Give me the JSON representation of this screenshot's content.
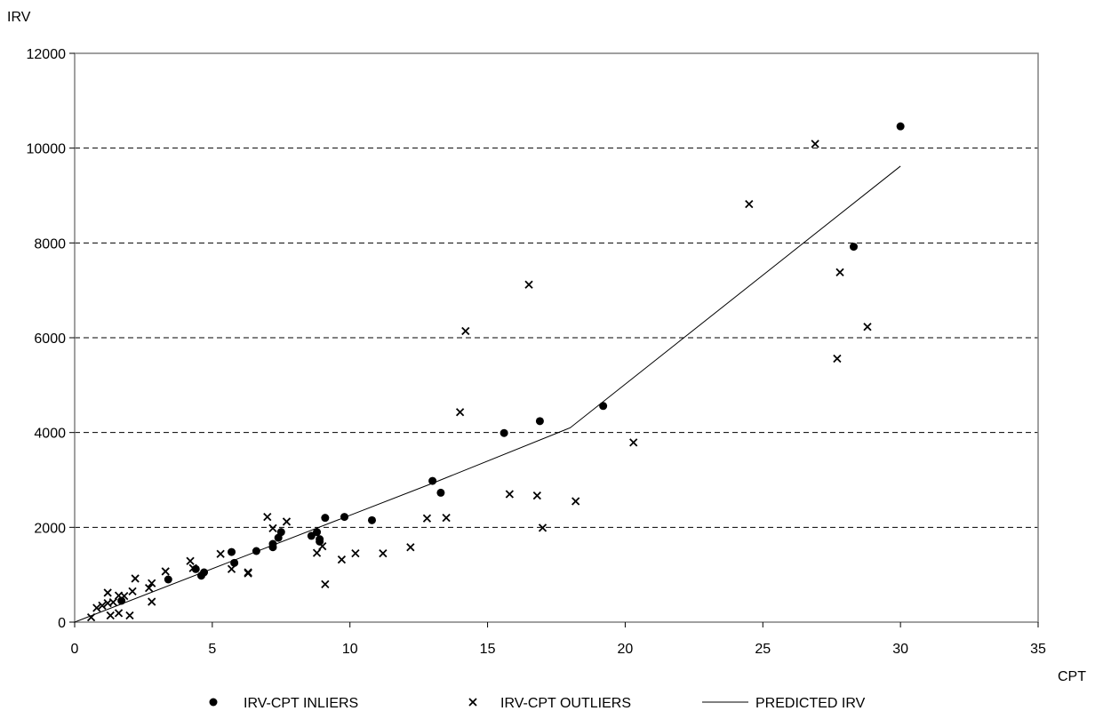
{
  "chart_data": {
    "type": "scatter",
    "title": "",
    "xlabel": "CPT",
    "ylabel": "IRV",
    "xlim": [
      0,
      35
    ],
    "ylim": [
      0,
      12000
    ],
    "x_ticks": [
      "0",
      "5",
      "10",
      "15",
      "20",
      "25",
      "30",
      "35"
    ],
    "y_ticks": [
      "0",
      "2000",
      "4000",
      "6000",
      "8000",
      "10000",
      "12000"
    ],
    "grid": "horizontal-dashed",
    "legend_position": "bottom",
    "series": [
      {
        "name": "IRV-CPT INLIERS",
        "marker": "dot",
        "points": [
          [
            1.7,
            450
          ],
          [
            3.4,
            900
          ],
          [
            4.4,
            1120
          ],
          [
            4.6,
            980
          ],
          [
            4.7,
            1050
          ],
          [
            5.7,
            1480
          ],
          [
            5.8,
            1250
          ],
          [
            6.6,
            1500
          ],
          [
            7.2,
            1580
          ],
          [
            7.2,
            1650
          ],
          [
            7.4,
            1780
          ],
          [
            7.5,
            1900
          ],
          [
            8.6,
            1820
          ],
          [
            8.8,
            1900
          ],
          [
            8.9,
            1750
          ],
          [
            8.9,
            1700
          ],
          [
            9.1,
            2200
          ],
          [
            9.8,
            2220
          ],
          [
            10.8,
            2150
          ],
          [
            13.0,
            2980
          ],
          [
            13.3,
            2730
          ],
          [
            15.6,
            3990
          ],
          [
            16.9,
            4240
          ],
          [
            19.2,
            4560
          ],
          [
            28.3,
            7920
          ],
          [
            30.0,
            10460
          ]
        ]
      },
      {
        "name": "IRV-CPT OUTLIERS",
        "marker": "x",
        "points": [
          [
            0.6,
            100
          ],
          [
            0.8,
            300
          ],
          [
            1.0,
            350
          ],
          [
            1.2,
            620
          ],
          [
            1.2,
            400
          ],
          [
            1.3,
            140
          ],
          [
            1.4,
            420
          ],
          [
            1.6,
            560
          ],
          [
            1.6,
            190
          ],
          [
            1.8,
            550
          ],
          [
            2.0,
            140
          ],
          [
            2.1,
            650
          ],
          [
            2.2,
            920
          ],
          [
            2.7,
            720
          ],
          [
            2.8,
            820
          ],
          [
            2.8,
            430
          ],
          [
            3.3,
            1070
          ],
          [
            4.2,
            1290
          ],
          [
            4.3,
            1140
          ],
          [
            5.3,
            1440
          ],
          [
            5.7,
            1120
          ],
          [
            6.3,
            1050
          ],
          [
            6.3,
            1030
          ],
          [
            7.0,
            2220
          ],
          [
            7.2,
            1980
          ],
          [
            7.7,
            2120
          ],
          [
            8.8,
            1460
          ],
          [
            9.0,
            1600
          ],
          [
            9.1,
            800
          ],
          [
            9.7,
            1320
          ],
          [
            10.2,
            1450
          ],
          [
            11.2,
            1450
          ],
          [
            12.2,
            1580
          ],
          [
            12.8,
            2190
          ],
          [
            13.5,
            2200
          ],
          [
            14.0,
            4430
          ],
          [
            14.2,
            6140
          ],
          [
            15.8,
            2700
          ],
          [
            16.5,
            7120
          ],
          [
            16.8,
            2670
          ],
          [
            17.0,
            1990
          ],
          [
            18.2,
            2550
          ],
          [
            20.3,
            3790
          ],
          [
            24.5,
            8820
          ],
          [
            26.9,
            10090
          ],
          [
            27.7,
            5560
          ],
          [
            27.8,
            7380
          ],
          [
            28.8,
            6230
          ]
        ]
      },
      {
        "name": "PREDICTED IRV",
        "marker": "line",
        "points": [
          [
            0,
            0
          ],
          [
            13.0,
            2930
          ],
          [
            18.0,
            4100
          ],
          [
            30.0,
            9620
          ]
        ]
      }
    ]
  }
}
